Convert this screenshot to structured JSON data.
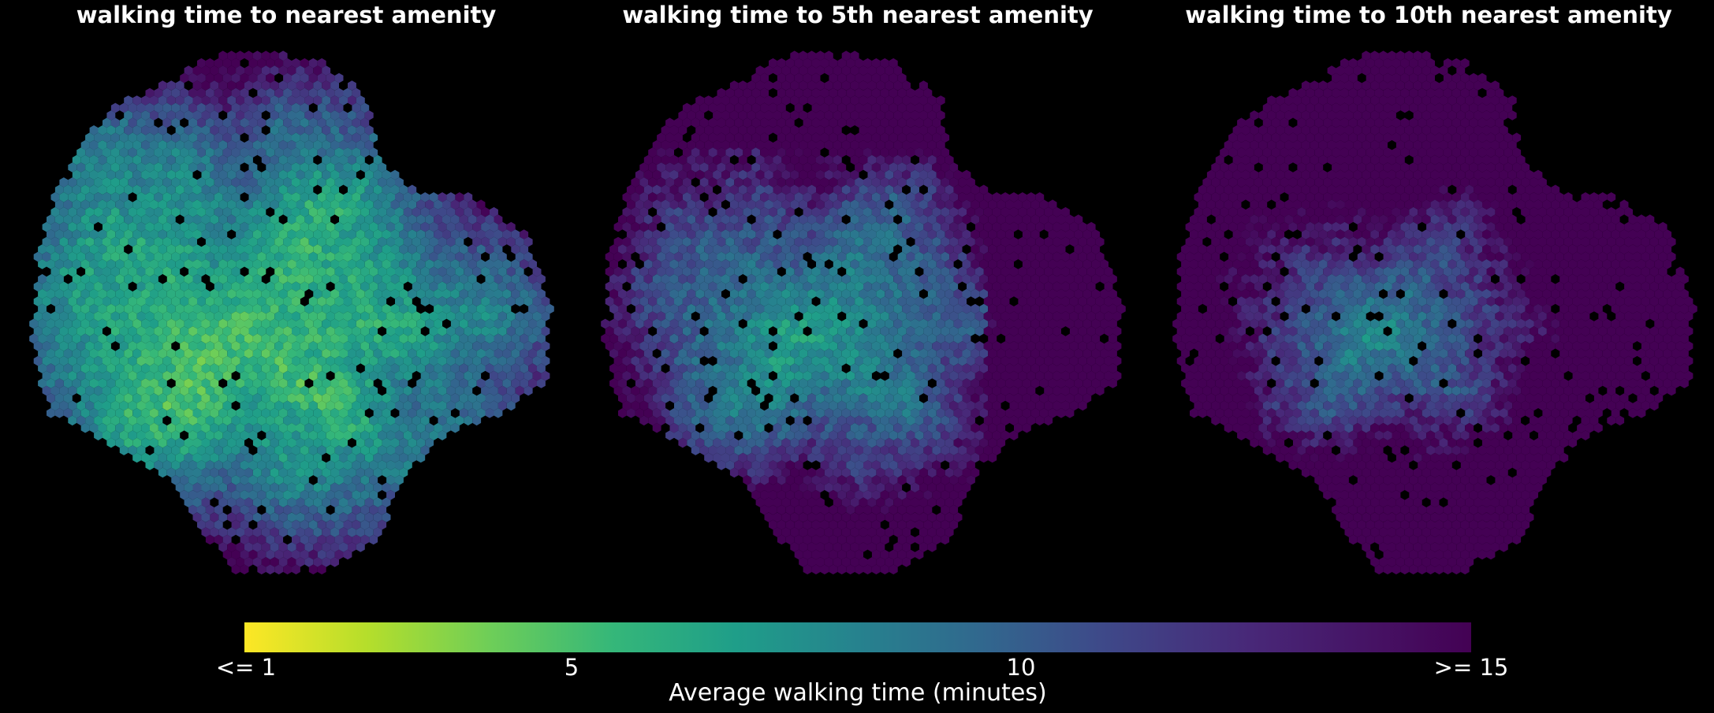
{
  "chart_data": [
    {
      "type": "heatmap",
      "title": "walking time to nearest amenity",
      "grid": false,
      "value_scale": "viridis_r",
      "value_range": [
        1,
        15
      ]
    },
    {
      "type": "heatmap",
      "title": "walking time to 5th nearest amenity",
      "grid": false,
      "value_scale": "viridis_r",
      "value_range": [
        1,
        15
      ]
    },
    {
      "type": "heatmap",
      "title": "walking time to 10th nearest amenity",
      "grid": false,
      "value_scale": "viridis_r",
      "value_range": [
        1,
        15
      ]
    }
  ],
  "colorbar": {
    "label": "Average walking time (minutes)",
    "ticks": [
      {
        "value": 1,
        "label": "<= 1"
      },
      {
        "value": 5,
        "label": "5"
      },
      {
        "value": 10,
        "label": "10"
      },
      {
        "value": 15,
        "label": ">= 15"
      }
    ],
    "colors": [
      "#fde725",
      "#b5de2b",
      "#6ece58",
      "#35b779",
      "#1f9e89",
      "#26828e",
      "#31688e",
      "#3e4989",
      "#482878",
      "#440154"
    ]
  }
}
